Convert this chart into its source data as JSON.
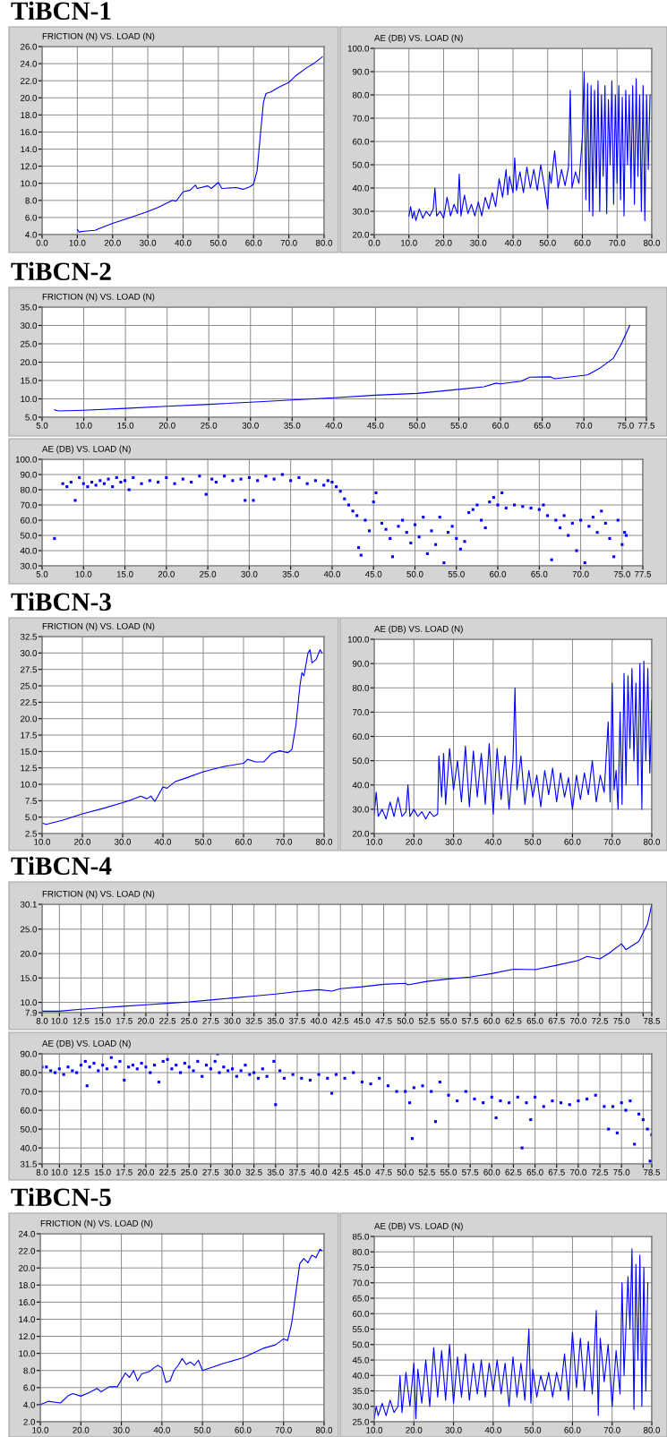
{
  "chart_data": [
    {
      "type": "line",
      "annotations": [
        "TiBCN-1"
      ],
      "title": "FRICTION (N) VS. LOAD (N)",
      "color": "#0000ff",
      "grid": true,
      "x": [
        10,
        10.5,
        12,
        15,
        18,
        20,
        25,
        30,
        33,
        37,
        38,
        40,
        42,
        43.5,
        44,
        47,
        48,
        50,
        51,
        55,
        57,
        59,
        60,
        61,
        62,
        62.8,
        63.5,
        65,
        67,
        70,
        72,
        75,
        77,
        79.5
      ],
      "values": [
        4.6,
        4.3,
        4.4,
        4.5,
        5.0,
        5.3,
        6.0,
        6.7,
        7.2,
        8.0,
        7.9,
        9.0,
        9.2,
        9.8,
        9.4,
        9.7,
        9.4,
        10.1,
        9.4,
        9.5,
        9.3,
        9.6,
        9.9,
        11.5,
        16,
        19.5,
        20.5,
        20.7,
        21.2,
        21.8,
        22.6,
        23.5,
        24.0,
        24.8
      ],
      "xlim": [
        0,
        80
      ],
      "ylim": [
        4,
        26
      ],
      "xticks": [
        {
          "value": 0,
          "label": "0.0"
        },
        {
          "value": 10,
          "label": "10.0"
        },
        {
          "value": 20,
          "label": "20.0"
        },
        {
          "value": 30,
          "label": "30.0"
        },
        {
          "value": 40,
          "label": "40.0"
        },
        {
          "value": 50,
          "label": "50.0"
        },
        {
          "value": 60,
          "label": "60.0"
        },
        {
          "value": 70,
          "label": "70.0"
        },
        {
          "value": 80,
          "label": "80.0"
        }
      ],
      "yticks": [
        {
          "value": 4,
          "label": "4.0"
        },
        {
          "value": 6,
          "label": "6.0"
        },
        {
          "value": 8,
          "label": "8.0"
        },
        {
          "value": 10,
          "label": "10.0"
        },
        {
          "value": 12,
          "label": "12.0"
        },
        {
          "value": 14,
          "label": "14.0"
        },
        {
          "value": 16,
          "label": "16.0"
        },
        {
          "value": 18,
          "label": "18.0"
        },
        {
          "value": 20,
          "label": "20.0"
        },
        {
          "value": 22,
          "label": "22.0"
        },
        {
          "value": 24,
          "label": "24.0"
        },
        {
          "value": 26,
          "label": "26.0"
        }
      ]
    },
    {
      "type": "line",
      "title": "AE (DB) VS. LOAD (N)",
      "color": "#0000ff",
      "grid": true,
      "x": [
        10,
        10.5,
        11,
        11.5,
        12,
        13,
        14,
        15,
        16,
        17,
        17.5,
        18,
        19,
        20,
        21,
        22,
        23,
        24,
        24.5,
        25,
        26,
        27,
        28,
        29,
        30,
        31,
        32,
        33,
        34,
        35,
        36,
        37,
        38,
        38.5,
        39,
        40,
        40.5,
        41,
        42,
        43,
        44,
        45,
        46,
        47,
        48,
        49,
        50,
        50.5,
        51,
        52,
        53,
        54,
        55,
        56,
        56.5,
        57,
        58,
        59,
        60,
        60.5,
        61,
        61.5,
        62,
        62.5,
        63,
        63.5,
        64,
        64.5,
        65,
        65.5,
        66,
        66.5,
        67,
        67.5,
        68,
        68.5,
        69,
        69.5,
        70,
        70.5,
        71,
        71.5,
        72,
        72.5,
        73,
        73.5,
        74,
        74.5,
        75,
        75.5,
        76,
        76.5,
        77,
        77.5,
        78,
        78.5,
        79,
        79.5
      ],
      "values": [
        28,
        32,
        27,
        30,
        26,
        31,
        27,
        30,
        28,
        31,
        40,
        28,
        30,
        27,
        36,
        28,
        33,
        29,
        46,
        28,
        37,
        29,
        33,
        28,
        34,
        28,
        36,
        31,
        38,
        32,
        44,
        36,
        48,
        37,
        45,
        38,
        53,
        39,
        47,
        38,
        49,
        40,
        48,
        39,
        50,
        41,
        31,
        47,
        42,
        56,
        40,
        48,
        41,
        49,
        82,
        40,
        47,
        42,
        62,
        90,
        35,
        85,
        30,
        84,
        28,
        82,
        40,
        86,
        30,
        80,
        45,
        84,
        29,
        78,
        50,
        86,
        33,
        80,
        42,
        84,
        35,
        79,
        28,
        82,
        50,
        80,
        40,
        84,
        33,
        87,
        45,
        80,
        30,
        84,
        26,
        80,
        48,
        80
      ],
      "xlim": [
        0,
        80
      ],
      "ylim": [
        20,
        100
      ],
      "xticks": [
        {
          "value": 0,
          "label": "0.0"
        },
        {
          "value": 10,
          "label": "10.0"
        },
        {
          "value": 20,
          "label": "20.0"
        },
        {
          "value": 30,
          "label": "30.0"
        },
        {
          "value": 40,
          "label": "40.0"
        },
        {
          "value": 50,
          "label": "50.0"
        },
        {
          "value": 60,
          "label": "60.0"
        },
        {
          "value": 70,
          "label": "70.0"
        },
        {
          "value": 80,
          "label": "80.0"
        }
      ],
      "yticks": [
        {
          "value": 20,
          "label": "20.0"
        },
        {
          "value": 30,
          "label": "30.0"
        },
        {
          "value": 40,
          "label": "40.0"
        },
        {
          "value": 50,
          "label": "50.0"
        },
        {
          "value": 60,
          "label": "60.0"
        },
        {
          "value": 70,
          "label": "70.0"
        },
        {
          "value": 80,
          "label": "80.0"
        },
        {
          "value": 90,
          "label": "90.0"
        },
        {
          "value": 100,
          "label": "100.0"
        }
      ]
    },
    {
      "type": "line",
      "annotations": [
        "TiBCN-2"
      ],
      "title": "FRICTION (N) VS. LOAD (N)",
      "color": "#0000ff",
      "grid": true,
      "x": [
        6.5,
        7,
        10,
        15,
        20,
        25,
        30,
        35,
        40,
        45,
        50,
        55,
        58,
        59.5,
        60,
        62.5,
        63.5,
        66,
        66.5,
        70,
        70.5,
        72,
        73.5,
        74.5,
        75.5
      ],
      "values": [
        7.0,
        6.7,
        6.9,
        7.4,
        8.0,
        8.5,
        9.1,
        9.7,
        10.3,
        11.0,
        11.5,
        12.6,
        13.3,
        14.3,
        14.1,
        14.8,
        15.9,
        16.0,
        15.5,
        16.4,
        16.6,
        18.5,
        21,
        25,
        30.0
      ],
      "xlim": [
        5,
        77.5
      ],
      "ylim": [
        5,
        35
      ],
      "xticks": [
        {
          "value": 5,
          "label": "5.0"
        },
        {
          "value": 10,
          "label": "10.0"
        },
        {
          "value": 15,
          "label": "15.0"
        },
        {
          "value": 20,
          "label": "20.0"
        },
        {
          "value": 25,
          "label": "25.0"
        },
        {
          "value": 30,
          "label": "30.0"
        },
        {
          "value": 35,
          "label": "35.0"
        },
        {
          "value": 40,
          "label": "40.0"
        },
        {
          "value": 45,
          "label": "45.0"
        },
        {
          "value": 50,
          "label": "50.0"
        },
        {
          "value": 55,
          "label": "55.0"
        },
        {
          "value": 60,
          "label": "60.0"
        },
        {
          "value": 65,
          "label": "65.0"
        },
        {
          "value": 70,
          "label": "70.0"
        },
        {
          "value": 75,
          "label": "75.0"
        },
        {
          "value": 77.5,
          "label": "77.5"
        }
      ],
      "yticks": [
        {
          "value": 5,
          "label": "5.0"
        },
        {
          "value": 10,
          "label": "10.0"
        },
        {
          "value": 15,
          "label": "15.0"
        },
        {
          "value": 20,
          "label": "20.0"
        },
        {
          "value": 25,
          "label": "25.0"
        },
        {
          "value": 30,
          "label": "30.0"
        },
        {
          "value": 35,
          "label": "35.0"
        }
      ]
    },
    {
      "type": "scatter",
      "marker": "square",
      "title": "AE (DB) VS. LOAD (N)",
      "color": "#0000ff",
      "grid": true,
      "x": [
        6.5,
        7.5,
        8,
        8.5,
        9,
        9.5,
        10,
        10.5,
        11,
        11.5,
        12,
        12.5,
        13,
        13.5,
        14,
        14.5,
        15,
        15.5,
        16,
        17,
        18,
        19,
        20,
        21,
        22,
        23,
        24,
        24.8,
        25.5,
        26,
        27,
        28,
        29,
        29.5,
        30,
        30.5,
        31,
        32,
        33,
        34,
        35,
        36,
        37,
        38,
        39,
        39.5,
        40,
        40.5,
        41,
        41.5,
        42,
        42.5,
        43,
        43.2,
        43.5,
        44,
        44.5,
        45,
        45.3,
        46,
        46.5,
        47,
        47.3,
        48,
        48.5,
        49,
        49.5,
        50,
        50.5,
        51,
        51.5,
        52,
        52.5,
        53,
        53.5,
        54,
        54.5,
        55,
        55.5,
        56,
        56.5,
        57,
        57.5,
        58,
        58.5,
        59,
        59.5,
        60,
        60.5,
        61,
        62,
        63,
        64,
        65,
        65.5,
        66,
        66.5,
        67,
        67.5,
        68,
        68.5,
        69,
        69.5,
        70,
        70.5,
        71,
        71.5,
        72,
        72.5,
        73,
        73.5,
        74,
        74.5,
        75,
        75.3,
        75.5
      ],
      "values": [
        48,
        84,
        82,
        85,
        73,
        88,
        84,
        82,
        85,
        83,
        86,
        84,
        87,
        82,
        88,
        85,
        86,
        80,
        88,
        84,
        86,
        85,
        88,
        84,
        87,
        85,
        89,
        77,
        87,
        85,
        89,
        86,
        87,
        73,
        88,
        73,
        86,
        89,
        87,
        90,
        86,
        88,
        84,
        86,
        83,
        86,
        85,
        82,
        79,
        74,
        70,
        66,
        63,
        42,
        37,
        60,
        53,
        72,
        78,
        58,
        54,
        48,
        36,
        56,
        60,
        52,
        45,
        57,
        49,
        62,
        38,
        53,
        44,
        62,
        32,
        52,
        56,
        48,
        41,
        46,
        65,
        67,
        70,
        60,
        55,
        72,
        75,
        70,
        78,
        68,
        70,
        69,
        68,
        67,
        70,
        63,
        34,
        60,
        55,
        63,
        50,
        58,
        40,
        60,
        32,
        56,
        62,
        52,
        66,
        58,
        48,
        36,
        60,
        44,
        52,
        50
      ],
      "xlim": [
        5,
        77.5
      ],
      "ylim": [
        30,
        100
      ],
      "xticks": [
        {
          "value": 5,
          "label": "5.0"
        },
        {
          "value": 10,
          "label": "10.0"
        },
        {
          "value": 15,
          "label": "15.0"
        },
        {
          "value": 20,
          "label": "20.0"
        },
        {
          "value": 25,
          "label": "25.0"
        },
        {
          "value": 30,
          "label": "30.0"
        },
        {
          "value": 35,
          "label": "35.0"
        },
        {
          "value": 40,
          "label": "40.0"
        },
        {
          "value": 45,
          "label": "45.0"
        },
        {
          "value": 50,
          "label": "50.0"
        },
        {
          "value": 55,
          "label": "55.0"
        },
        {
          "value": 60,
          "label": "60.0"
        },
        {
          "value": 65,
          "label": "65.0"
        },
        {
          "value": 70,
          "label": "70.0"
        },
        {
          "value": 75,
          "label": "75.0"
        },
        {
          "value": 77.5,
          "label": "77.5"
        }
      ],
      "yticks": [
        {
          "value": 30,
          "label": "30.0"
        },
        {
          "value": 40,
          "label": "40.0"
        },
        {
          "value": 50,
          "label": "50.0"
        },
        {
          "value": 60,
          "label": "60.0"
        },
        {
          "value": 70,
          "label": "70.0"
        },
        {
          "value": 80,
          "label": "80.0"
        },
        {
          "value": 90,
          "label": "90.0"
        },
        {
          "value": 100,
          "label": "100.0"
        }
      ]
    },
    {
      "type": "line",
      "annotations": [
        "TiBCN-3"
      ],
      "title": "FRICTION (N) VS. LOAD (N)",
      "color": "#0000ff",
      "grid": true,
      "x": [
        10,
        11,
        15,
        20,
        25,
        30,
        32,
        34.5,
        36,
        37,
        38,
        40,
        41,
        43,
        45,
        50,
        55,
        60,
        61,
        63,
        65,
        67,
        69,
        71,
        72,
        73,
        74,
        74.5,
        75,
        76,
        76.5,
        77,
        78,
        79,
        79.5
      ],
      "values": [
        4.1,
        3.9,
        4.5,
        5.5,
        6.3,
        7.2,
        7.6,
        8.2,
        7.8,
        8.2,
        7.4,
        9.6,
        9.4,
        10.4,
        10.8,
        11.9,
        12.7,
        13.2,
        13.8,
        13.4,
        13.4,
        14.7,
        15.1,
        14.8,
        15.3,
        19,
        25,
        27,
        26.5,
        30,
        30.5,
        28.5,
        29,
        30.5,
        30.0
      ],
      "xlim": [
        10,
        80
      ],
      "ylim": [
        2.5,
        32.5
      ],
      "xticks": [
        {
          "value": 10,
          "label": "10.0"
        },
        {
          "value": 20,
          "label": "20.0"
        },
        {
          "value": 30,
          "label": "30.0"
        },
        {
          "value": 40,
          "label": "40.0"
        },
        {
          "value": 50,
          "label": "50.0"
        },
        {
          "value": 60,
          "label": "60.0"
        },
        {
          "value": 70,
          "label": "70.0"
        },
        {
          "value": 80,
          "label": "80.0"
        }
      ],
      "yticks": [
        2.5,
        {
          "value": 5,
          "label": "5.0"
        },
        7.5,
        {
          "value": 10,
          "label": "10.0"
        },
        12.5,
        {
          "value": 15,
          "label": "15.0"
        },
        17.5,
        {
          "value": 20,
          "label": "20.0"
        },
        22.5,
        {
          "value": 25,
          "label": "25.0"
        },
        27.5,
        {
          "value": 30,
          "label": "30.0"
        },
        32.5
      ]
    },
    {
      "type": "line",
      "title": "AE (DB) VS. LOAD (N)",
      "color": "#0000ff",
      "grid": true,
      "x": [
        10,
        10.5,
        11,
        12,
        13,
        14,
        15,
        16,
        17,
        18,
        18.5,
        19,
        20,
        21,
        22,
        23,
        24,
        25,
        26,
        26.3,
        27,
        27.5,
        28,
        29,
        30,
        31,
        32,
        33,
        34,
        35,
        36,
        37,
        38,
        39,
        40,
        41,
        42,
        43,
        44,
        45,
        45.5,
        46,
        47,
        48,
        49,
        50,
        51,
        52,
        53,
        54,
        55,
        56,
        57,
        58,
        59,
        60,
        61,
        62,
        63,
        64,
        65,
        66,
        67,
        68,
        69,
        69.5,
        70,
        70.5,
        71,
        71.5,
        72,
        72.5,
        73,
        73.5,
        74,
        74.5,
        75,
        75.5,
        76,
        76.5,
        77,
        77.5,
        78,
        78.5,
        79,
        79.5,
        80
      ],
      "values": [
        28,
        37,
        27,
        30,
        26,
        33,
        27,
        35,
        27,
        29,
        40,
        27,
        30,
        27,
        29,
        26,
        29,
        27,
        28,
        52,
        35,
        53,
        32,
        55,
        38,
        50,
        33,
        56,
        31,
        54,
        35,
        53,
        32,
        57,
        28,
        55,
        34,
        52,
        30,
        50,
        80,
        38,
        52,
        32,
        46,
        35,
        44,
        31,
        46,
        36,
        47,
        33,
        45,
        35,
        43,
        30,
        44,
        34,
        45,
        36,
        50,
        33,
        44,
        37,
        66,
        33,
        82,
        38,
        46,
        30,
        70,
        32,
        86,
        40,
        85,
        55,
        88,
        50,
        82,
        40,
        90,
        30,
        91,
        50,
        88,
        45,
        75
      ],
      "xlim": [
        10,
        80
      ],
      "ylim": [
        20,
        100
      ],
      "xticks": [
        {
          "value": 10,
          "label": "10.0"
        },
        {
          "value": 20,
          "label": "20.0"
        },
        {
          "value": 30,
          "label": "30.0"
        },
        {
          "value": 40,
          "label": "40.0"
        },
        {
          "value": 50,
          "label": "50.0"
        },
        {
          "value": 60,
          "label": "60.0"
        },
        {
          "value": 70,
          "label": "70.0"
        },
        {
          "value": 80,
          "label": "80.0"
        }
      ],
      "yticks": [
        {
          "value": 20,
          "label": "20.0"
        },
        {
          "value": 30,
          "label": "30.0"
        },
        {
          "value": 40,
          "label": "40.0"
        },
        {
          "value": 50,
          "label": "50.0"
        },
        {
          "value": 60,
          "label": "60.0"
        },
        {
          "value": 70,
          "label": "70.0"
        },
        {
          "value": 80,
          "label": "80.0"
        },
        {
          "value": 90,
          "label": "90.0"
        },
        {
          "value": 100,
          "label": "100.0"
        }
      ]
    },
    {
      "type": "line",
      "annotations": [
        "TiBCN-4"
      ],
      "title": "FRICTION (N) VS. LOAD (N)",
      "color": "#0000ff",
      "grid": true,
      "x": [
        8,
        10,
        12.5,
        15,
        17.5,
        20,
        22.5,
        25,
        27.5,
        30,
        32.5,
        35,
        37.5,
        40,
        41.5,
        42.5,
        45,
        47.5,
        50,
        50.3,
        52.5,
        55,
        57.5,
        60,
        62.5,
        65,
        67.5,
        70,
        71,
        72.5,
        73.5,
        75,
        75.5,
        77,
        78,
        78.5
      ],
      "values": [
        8.2,
        8.2,
        8.6,
        8.9,
        9.2,
        9.5,
        9.8,
        10.1,
        10.5,
        10.9,
        11.3,
        11.7,
        12.2,
        12.6,
        12.3,
        12.8,
        13.2,
        13.7,
        13.9,
        13.6,
        14.3,
        14.8,
        15.2,
        15.9,
        16.8,
        16.7,
        17.6,
        18.6,
        19.4,
        18.9,
        20,
        22.0,
        20.8,
        22.5,
        26,
        30.1
      ],
      "xlim": [
        8,
        78.5
      ],
      "ylim": [
        7.9,
        30.1
      ],
      "xticks": [
        {
          "value": 8,
          "label": "8.0"
        },
        {
          "value": 10,
          "label": "10.0"
        },
        12.5,
        {
          "value": 15,
          "label": "15.0"
        },
        17.5,
        {
          "value": 20,
          "label": "20.0"
        },
        22.5,
        {
          "value": 25,
          "label": "25.0"
        },
        27.5,
        {
          "value": 30,
          "label": "30.0"
        },
        32.5,
        {
          "value": 35,
          "label": "35.0"
        },
        37.5,
        {
          "value": 40,
          "label": "40.0"
        },
        42.5,
        {
          "value": 45,
          "label": "45.0"
        },
        47.5,
        {
          "value": 50,
          "label": "50.0"
        },
        52.5,
        {
          "value": 55,
          "label": "55.0"
        },
        57.5,
        {
          "value": 60,
          "label": "60.0"
        },
        62.5,
        {
          "value": 65,
          "label": "65.0"
        },
        67.5,
        {
          "value": 70,
          "label": "70.0"
        },
        72.5,
        {
          "value": 75,
          "label": "75.0"
        },
        {
          "value": 77.5,
          "label": null
        },
        78.5
      ],
      "yticks": [
        7.9,
        {
          "value": 10,
          "label": "10.0"
        },
        {
          "value": 15,
          "label": "15.0"
        },
        {
          "value": 20,
          "label": "20.0"
        },
        {
          "value": 25,
          "label": "25.0"
        },
        30.1
      ]
    },
    {
      "type": "scatter",
      "marker": "square",
      "title": "AE (DB) VS. LOAD (N)",
      "color": "#0000ff",
      "grid": true,
      "x": [
        8,
        8.5,
        9,
        9.5,
        10,
        10.5,
        11,
        11.5,
        12,
        12.5,
        13,
        13.2,
        13.5,
        14,
        14.5,
        15,
        15.5,
        16,
        16.5,
        17,
        17.5,
        18,
        18.5,
        19,
        19.5,
        20,
        20.5,
        21,
        21.5,
        22,
        22.5,
        23,
        23.5,
        24,
        24.5,
        25,
        25.5,
        26,
        26.5,
        27,
        27.5,
        28,
        28.3,
        28.5,
        29,
        29.5,
        30,
        30.5,
        31,
        31.5,
        32,
        32.5,
        33,
        33.5,
        34,
        34.8,
        35,
        35.5,
        36,
        37,
        38,
        39,
        40,
        41,
        41.5,
        42,
        43,
        44,
        45,
        46,
        47,
        48,
        49,
        50,
        50.5,
        50.8,
        51,
        52,
        53,
        53.5,
        54,
        55,
        56,
        57,
        58,
        59,
        60,
        60.5,
        61,
        62,
        63,
        63.5,
        64,
        64.5,
        65,
        66,
        67,
        68,
        69,
        70,
        71,
        72,
        73,
        73.5,
        74,
        74.5,
        75,
        75.5,
        76,
        76.5,
        77,
        77.5,
        78,
        78.3,
        78.5
      ],
      "values": [
        83,
        83,
        81,
        80,
        82,
        79,
        83,
        81,
        80,
        84,
        86,
        73,
        83,
        85,
        81,
        84,
        82,
        88,
        83,
        86,
        76,
        83,
        84,
        82,
        85,
        83,
        80,
        84,
        75,
        86,
        87,
        82,
        84,
        80,
        85,
        83,
        81,
        86,
        78,
        84,
        82,
        86,
        90,
        80,
        83,
        81,
        82,
        78,
        81,
        84,
        79,
        80,
        77,
        82,
        78,
        86,
        63,
        81,
        77,
        79,
        77,
        76,
        79,
        77,
        69,
        79,
        77,
        80,
        75,
        74,
        77,
        73,
        70,
        70,
        64,
        45,
        72,
        73,
        70,
        54,
        75,
        68,
        65,
        70,
        66,
        64,
        67,
        56,
        65,
        64,
        67,
        40,
        64,
        55,
        67,
        62,
        65,
        64,
        63,
        65,
        66,
        68,
        62,
        50,
        62,
        48,
        64,
        60,
        65,
        42,
        58,
        55,
        50,
        33,
        47
      ],
      "xlim": [
        8,
        78.5
      ],
      "ylim": [
        31.5,
        90
      ],
      "xticks": [
        {
          "value": 8,
          "label": "8.0"
        },
        {
          "value": 10,
          "label": "10.0"
        },
        12.5,
        {
          "value": 15,
          "label": "15.0"
        },
        17.5,
        {
          "value": 20,
          "label": "20.0"
        },
        22.5,
        {
          "value": 25,
          "label": "25.0"
        },
        27.5,
        {
          "value": 30,
          "label": "30.0"
        },
        32.5,
        {
          "value": 35,
          "label": "35.0"
        },
        37.5,
        {
          "value": 40,
          "label": "40.0"
        },
        42.5,
        {
          "value": 45,
          "label": "45.0"
        },
        47.5,
        {
          "value": 50,
          "label": "50.0"
        },
        52.5,
        {
          "value": 55,
          "label": "55.0"
        },
        57.5,
        {
          "value": 60,
          "label": "60.0"
        },
        62.5,
        {
          "value": 65,
          "label": "65.0"
        },
        67.5,
        {
          "value": 70,
          "label": "70.0"
        },
        72.5,
        {
          "value": 75,
          "label": "75.0"
        },
        {
          "value": 77.5,
          "label": null
        },
        78.5
      ],
      "yticks": [
        31.5,
        {
          "value": 40,
          "label": "40.0"
        },
        {
          "value": 50,
          "label": "50.0"
        },
        {
          "value": 60,
          "label": "60.0"
        },
        {
          "value": 70,
          "label": "70.0"
        },
        {
          "value": 80,
          "label": "80.0"
        },
        {
          "value": 90,
          "label": "90.0"
        }
      ]
    },
    {
      "type": "line",
      "annotations": [
        "TiBCN-5"
      ],
      "title": "FRICTION (N) VS. LOAD (N)",
      "color": "#0000ff",
      "grid": true,
      "x": [
        10,
        11,
        12,
        15,
        17,
        18,
        20,
        22,
        24,
        25,
        27,
        29,
        31,
        32,
        33,
        34,
        35,
        37,
        38,
        39,
        40,
        41,
        42,
        43,
        44,
        45,
        46,
        47,
        48,
        49,
        50,
        55,
        60,
        65,
        68,
        70,
        71,
        72,
        73,
        74,
        75,
        76,
        77,
        78,
        79,
        79.5
      ],
      "values": [
        4.0,
        4.2,
        4.4,
        4.2,
        5.1,
        5.3,
        5.0,
        5.4,
        5.9,
        5.5,
        6.1,
        6.1,
        7.7,
        7.2,
        8.0,
        6.8,
        7.6,
        7.9,
        8.3,
        8.6,
        8.3,
        6.6,
        6.8,
        8.0,
        8.6,
        9.4,
        8.7,
        9.0,
        8.6,
        9.2,
        8.0,
        8.8,
        9.5,
        10.6,
        11.0,
        11.7,
        11.5,
        13.5,
        17,
        20.5,
        21.1,
        20.6,
        21.5,
        21.2,
        22.2,
        22.0
      ],
      "xlim": [
        10,
        80
      ],
      "ylim": [
        2,
        24
      ],
      "xticks": [
        {
          "value": 10,
          "label": "10.0"
        },
        {
          "value": 20,
          "label": "20.0"
        },
        {
          "value": 30,
          "label": "30.0"
        },
        {
          "value": 40,
          "label": "40.0"
        },
        {
          "value": 50,
          "label": "50.0"
        },
        {
          "value": 60,
          "label": "60.0"
        },
        {
          "value": 70,
          "label": "70.0"
        },
        {
          "value": 80,
          "label": "80.0"
        }
      ],
      "yticks": [
        {
          "value": 2,
          "label": "2.0"
        },
        {
          "value": 4,
          "label": "4.0"
        },
        {
          "value": 6,
          "label": "6.0"
        },
        {
          "value": 8,
          "label": "8.0"
        },
        {
          "value": 10,
          "label": "10.0"
        },
        {
          "value": 12,
          "label": "12.0"
        },
        {
          "value": 14,
          "label": "14.0"
        },
        {
          "value": 16,
          "label": "16.0"
        },
        {
          "value": 18,
          "label": "18.0"
        },
        {
          "value": 20,
          "label": "20.0"
        },
        {
          "value": 22,
          "label": "22.0"
        },
        {
          "value": 24,
          "label": "24.0"
        }
      ]
    },
    {
      "type": "line",
      "title": "AE (DB) VS. LOAD (N)",
      "color": "#0000ff",
      "grid": true,
      "x": [
        10,
        10.5,
        11,
        12,
        13,
        14,
        15,
        16,
        16.5,
        17,
        18,
        19,
        20,
        20.5,
        21,
        22,
        23,
        24,
        25,
        26,
        27,
        28,
        29,
        30,
        31,
        32,
        33,
        34,
        35,
        36,
        37,
        38,
        39,
        40,
        41,
        42,
        43,
        44,
        45,
        46,
        47,
        48,
        49,
        49.5,
        50,
        51,
        52,
        53,
        54,
        55,
        56,
        57,
        58,
        59,
        60,
        61,
        62,
        63,
        64,
        65,
        66,
        66.5,
        67,
        68,
        69,
        70,
        71,
        72,
        72.5,
        73,
        74,
        74.5,
        75,
        75.5,
        76,
        76.5,
        77,
        77.5,
        78,
        78.5,
        79
      ],
      "values": [
        26,
        30,
        27,
        31,
        27,
        32,
        28,
        30,
        40,
        28,
        41,
        30,
        44,
        26,
        42,
        31,
        45,
        30,
        49,
        33,
        48,
        32,
        50,
        31,
        46,
        33,
        47,
        32,
        44,
        34,
        45,
        33,
        44,
        35,
        45,
        34,
        44,
        30,
        46,
        33,
        44,
        32,
        55,
        31,
        42,
        33,
        40,
        35,
        41,
        33,
        41,
        35,
        47,
        32,
        54,
        36,
        52,
        35,
        51,
        34,
        61,
        27,
        52,
        38,
        50,
        30,
        48,
        34,
        70,
        40,
        72,
        55,
        81,
        29,
        76,
        45,
        79,
        30,
        75,
        35,
        70
      ],
      "xlim": [
        10,
        80
      ],
      "ylim": [
        25,
        85
      ],
      "xticks": [
        {
          "value": 10,
          "label": "10.0"
        },
        {
          "value": 20,
          "label": "20.0"
        },
        {
          "value": 30,
          "label": "30.0"
        },
        {
          "value": 40,
          "label": "40.0"
        },
        {
          "value": 50,
          "label": "50.0"
        },
        {
          "value": 60,
          "label": "60.0"
        },
        {
          "value": 70,
          "label": "70.0"
        },
        {
          "value": 80,
          "label": "80.0"
        }
      ],
      "yticks": [
        {
          "value": 25,
          "label": "25.0"
        },
        {
          "value": 30,
          "label": "30.0"
        },
        {
          "value": 35,
          "label": "35.0"
        },
        {
          "value": 40,
          "label": "40.0"
        },
        {
          "value": 45,
          "label": "45.0"
        },
        {
          "value": 50,
          "label": "50.0"
        },
        {
          "value": 55,
          "label": "55.0"
        },
        {
          "value": 60,
          "label": "60.0"
        },
        {
          "value": 65,
          "label": "65.0"
        },
        {
          "value": 70,
          "label": "70.0"
        },
        {
          "value": 75,
          "label": "75.0"
        },
        {
          "value": 80,
          "label": "80.0"
        },
        {
          "value": 85,
          "label": "85.0"
        }
      ]
    }
  ]
}
